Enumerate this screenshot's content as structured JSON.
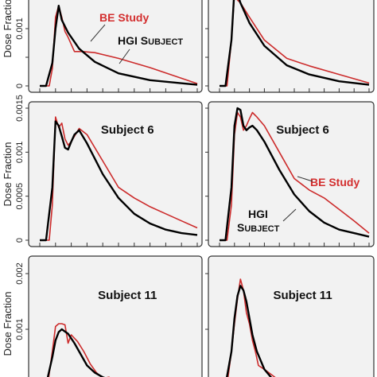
{
  "figure": {
    "ylabel": "Dose Fraction",
    "legend_be": "BE Study",
    "legend_hgi_1": "HGI",
    "legend_hgi_2a": "S",
    "legend_hgi_2b": "UBJECT",
    "colors": {
      "be_study": "#cc2b2b",
      "hgi_subject": "#000000"
    }
  },
  "chart_data": [
    {
      "type": "line",
      "panel": "top-left",
      "title": "",
      "ylim": [
        0,
        0.0015
      ],
      "yticks": [
        "0",
        "0.001"
      ],
      "series": [
        {
          "name": "BE Study",
          "x": [
            0,
            0.06,
            0.08,
            0.1,
            0.12,
            0.14,
            0.16,
            0.18,
            0.22,
            0.27,
            0.35,
            0.5,
            0.7,
            1.0
          ],
          "y": [
            0,
            0,
            0.0003,
            0.0012,
            0.0014,
            0.0012,
            0.00095,
            0.00085,
            0.0006,
            0.0006,
            0.00058,
            0.00048,
            0.00032,
            4e-05
          ]
        },
        {
          "name": "HGI Subject",
          "x": [
            0,
            0.04,
            0.08,
            0.1,
            0.12,
            0.14,
            0.18,
            0.25,
            0.35,
            0.5,
            0.7,
            1.0
          ],
          "y": [
            0,
            0,
            0.0004,
            0.001,
            0.0014,
            0.00115,
            0.00093,
            0.00065,
            0.00042,
            0.00022,
            0.0001,
            2e-05
          ]
        }
      ]
    },
    {
      "type": "line",
      "panel": "top-right",
      "title": "",
      "ylim": [
        0,
        0.0015
      ],
      "yticks": [],
      "series": [
        {
          "name": "BE Study",
          "x": [
            0,
            0.05,
            0.08,
            0.1,
            0.12,
            0.14,
            0.2,
            0.3,
            0.45,
            0.6,
            0.8,
            1.0
          ],
          "y": [
            0,
            0,
            0.0008,
            0.0016,
            0.0015,
            0.00145,
            0.0012,
            0.0008,
            0.00048,
            0.00035,
            0.0002,
            5e-05
          ]
        },
        {
          "name": "HGI Subject",
          "x": [
            0,
            0.04,
            0.08,
            0.1,
            0.12,
            0.14,
            0.2,
            0.3,
            0.45,
            0.6,
            0.8,
            1.0
          ],
          "y": [
            0,
            0,
            0.0008,
            0.0017,
            0.0016,
            0.00145,
            0.0011,
            0.0007,
            0.00036,
            0.0002,
            8e-05,
            2e-05
          ]
        }
      ]
    },
    {
      "type": "line",
      "panel": "middle-left",
      "title": "Subject 6",
      "ylim": [
        0,
        0.0015
      ],
      "yticks": [
        "0",
        "0.0005",
        "0.001",
        "0.0015"
      ],
      "series": [
        {
          "name": "BE Study",
          "x": [
            0,
            0.06,
            0.08,
            0.1,
            0.12,
            0.14,
            0.16,
            0.18,
            0.2,
            0.22,
            0.25,
            0.3,
            0.4,
            0.5,
            0.6,
            0.7,
            0.8,
            0.9,
            1.0
          ],
          "y": [
            0,
            0,
            0.0004,
            0.0014,
            0.00128,
            0.00133,
            0.00115,
            0.00108,
            0.00112,
            0.00118,
            0.00127,
            0.0012,
            0.0009,
            0.0006,
            0.00048,
            0.00038,
            0.0003,
            0.00022,
            0.00014
          ]
        },
        {
          "name": "HGI Subject",
          "x": [
            0,
            0.04,
            0.08,
            0.1,
            0.12,
            0.14,
            0.16,
            0.18,
            0.2,
            0.22,
            0.25,
            0.3,
            0.4,
            0.5,
            0.6,
            0.7,
            0.8,
            0.9,
            1.0
          ],
          "y": [
            0,
            0,
            0.0006,
            0.00135,
            0.0013,
            0.00118,
            0.00105,
            0.00103,
            0.00112,
            0.0012,
            0.00125,
            0.0011,
            0.00075,
            0.00048,
            0.0003,
            0.00019,
            0.00012,
            8e-05,
            6e-05
          ]
        }
      ]
    },
    {
      "type": "line",
      "panel": "middle-right",
      "title": "Subject 6",
      "ylim": [
        0,
        0.0015
      ],
      "yticks": [],
      "series": [
        {
          "name": "BE Study",
          "x": [
            0,
            0.05,
            0.08,
            0.1,
            0.12,
            0.14,
            0.16,
            0.18,
            0.2,
            0.22,
            0.25,
            0.3,
            0.4,
            0.5,
            0.6,
            0.7,
            0.8,
            0.9,
            1.0
          ],
          "y": [
            0,
            0,
            0.0004,
            0.0012,
            0.00145,
            0.0014,
            0.00125,
            0.0013,
            0.00138,
            0.00145,
            0.0014,
            0.0013,
            0.001,
            0.0007,
            0.00057,
            0.00048,
            0.00035,
            0.00022,
            8e-05
          ]
        },
        {
          "name": "HGI Subject",
          "x": [
            0,
            0.04,
            0.08,
            0.1,
            0.12,
            0.14,
            0.16,
            0.18,
            0.2,
            0.22,
            0.25,
            0.3,
            0.4,
            0.5,
            0.6,
            0.7,
            0.8,
            0.9,
            1.0
          ],
          "y": [
            0,
            0,
            0.0006,
            0.0013,
            0.0015,
            0.00148,
            0.0013,
            0.00125,
            0.00128,
            0.0013,
            0.00125,
            0.00112,
            0.0008,
            0.00052,
            0.00033,
            0.0002,
            0.00012,
            8e-05,
            4e-05
          ]
        }
      ]
    },
    {
      "type": "line",
      "panel": "bottom-left",
      "title": "Subject 11",
      "ylim": [
        0,
        0.0022
      ],
      "yticks": [
        "0.001",
        "0.002"
      ],
      "series": [
        {
          "name": "BE Study",
          "x": [
            0,
            0.05,
            0.08,
            0.1,
            0.12,
            0.14,
            0.16,
            0.18,
            0.2,
            0.24,
            0.28,
            0.32,
            0.36,
            0.4,
            0.44,
            0.48,
            0.55,
            0.7
          ],
          "y": [
            0,
            0,
            0.0006,
            0.00105,
            0.0011,
            0.0011,
            0.00108,
            0.00075,
            0.0009,
            0.00078,
            0.0006,
            0.00038,
            0.00022,
            0.00012,
            0.00014,
            6e-05,
            4e-05,
            0
          ]
        },
        {
          "name": "HGI Subject",
          "x": [
            0,
            0.04,
            0.08,
            0.1,
            0.12,
            0.14,
            0.18,
            0.22,
            0.26,
            0.3,
            0.35,
            0.4,
            0.45,
            0.5,
            0.6,
            0.7
          ],
          "y": [
            0,
            0,
            0.0005,
            0.0008,
            0.00095,
            0.001,
            0.00092,
            0.00075,
            0.00055,
            0.00035,
            0.00022,
            0.00014,
            9e-05,
            6e-05,
            2e-05,
            0
          ]
        }
      ]
    },
    {
      "type": "line",
      "panel": "bottom-right",
      "title": "Subject 11",
      "ylim": [
        0,
        0.0022
      ],
      "yticks": [],
      "series": [
        {
          "name": "BE Study",
          "x": [
            0,
            0.05,
            0.08,
            0.1,
            0.12,
            0.14,
            0.16,
            0.18,
            0.2,
            0.22,
            0.24,
            0.26,
            0.3,
            0.34,
            0.4,
            0.5
          ],
          "y": [
            0,
            0,
            0.0006,
            0.0011,
            0.00155,
            0.0019,
            0.0017,
            0.0013,
            0.0011,
            0.0008,
            0.0006,
            0.00035,
            0.00028,
            0.0002,
            8e-05,
            0
          ]
        },
        {
          "name": "HGI Subject",
          "x": [
            0,
            0.04,
            0.08,
            0.1,
            0.12,
            0.14,
            0.16,
            0.18,
            0.2,
            0.22,
            0.25,
            0.3,
            0.35,
            0.4,
            0.5
          ],
          "y": [
            0,
            0,
            0.0006,
            0.0012,
            0.0016,
            0.00178,
            0.0017,
            0.0015,
            0.0012,
            0.0009,
            0.0006,
            0.00028,
            0.00012,
            5e-05,
            0
          ]
        }
      ]
    }
  ]
}
